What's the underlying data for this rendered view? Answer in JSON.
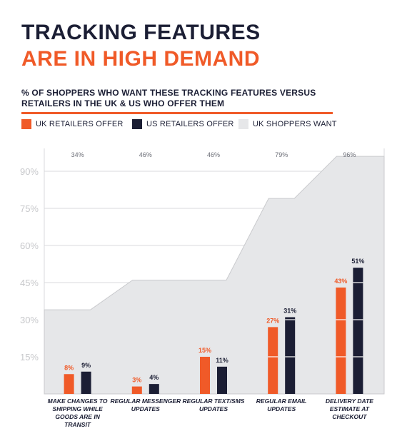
{
  "header": {
    "title_line1": "TRACKING FEATURES",
    "title_line2": "ARE IN HIGH DEMAND",
    "subtitle": "% OF SHOPPERS WHO WANT THESE TRACKING FEATURES VERSUS RETAILERS IN THE UK & US WHO OFFER THEM"
  },
  "legend": [
    {
      "label": "UK RETAILERS OFFER",
      "color": "#f05a28"
    },
    {
      "label": "US RETAILERS OFFER",
      "color": "#1b1e34"
    },
    {
      "label": "UK SHOPPERS WANT",
      "color": "#e6e7e9"
    }
  ],
  "chart_data": {
    "type": "bar",
    "categories": [
      [
        "MAKE CHANGES TO",
        "SHIPPING WHILE",
        "GOODS ARE IN",
        "TRANSIT"
      ],
      [
        "REGULAR MESSENGER",
        "UPDATES"
      ],
      [
        "REGULAR TEXT/SMS",
        "UPDATES"
      ],
      [
        "REGULAR EMAIL",
        "UPDATES"
      ],
      [
        "DELIVERY DATE",
        "ESTIMATE AT",
        "CHECKOUT"
      ]
    ],
    "series": [
      {
        "name": "UK RETAILERS OFFER",
        "type": "bar",
        "color": "#f05a28",
        "values": [
          8,
          3,
          15,
          27,
          43
        ],
        "labels": [
          "8%",
          "3%",
          "15%",
          "27%",
          "43%"
        ]
      },
      {
        "name": "US RETAILERS OFFER",
        "type": "bar",
        "color": "#1b1e34",
        "values": [
          9,
          4,
          11,
          31,
          51
        ],
        "labels": [
          "9%",
          "4%",
          "11%",
          "31%",
          "51%"
        ]
      },
      {
        "name": "UK SHOPPERS WANT",
        "type": "area",
        "color": "#e6e7e9",
        "values": [
          34,
          46,
          46,
          79,
          96
        ],
        "labels": [
          "34%",
          "46%",
          "46%",
          "79%",
          "96%"
        ]
      }
    ],
    "y_ticks": [
      "15%",
      "30%",
      "45%",
      "60%",
      "75%",
      "90%"
    ],
    "ylim": [
      0,
      100
    ],
    "grid": true,
    "legend_position": "top-left"
  }
}
